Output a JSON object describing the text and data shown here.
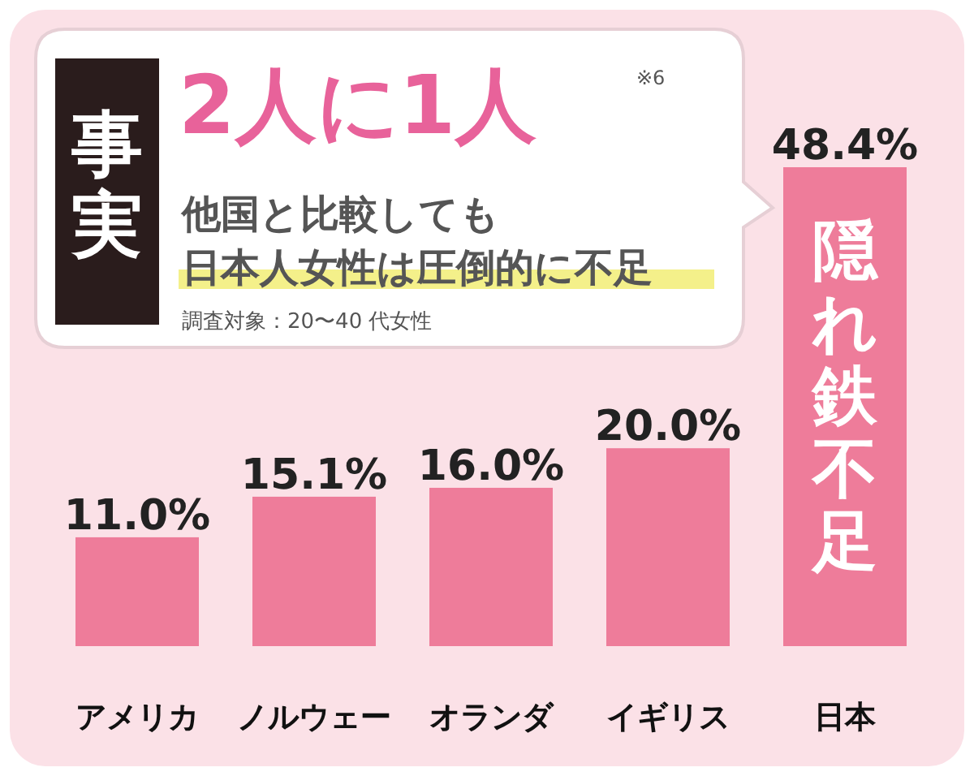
{
  "chart_data": {
    "type": "bar",
    "categories": [
      "アメリカ",
      "ノルウェー",
      "オランダ",
      "イギリス",
      "日本"
    ],
    "values": [
      11.0,
      15.1,
      16.0,
      20.0,
      48.4
    ],
    "color": "#ee7c9a",
    "value_labels": [
      "11.0%",
      "15.1%",
      "16.0%",
      "20.0%",
      "48.4%"
    ],
    "annotations": [
      "事実",
      "2人に1人",
      "※6",
      "他国と比較しても",
      "日本人女性は圧倒的に不足",
      "調査対象：20〜40 代女性",
      "隠れ鉄不足"
    ]
  }
}
